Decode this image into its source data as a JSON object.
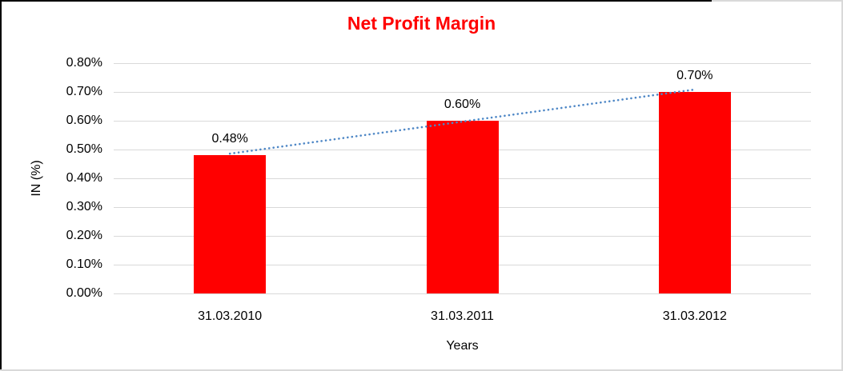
{
  "chart": {
    "title": "Net Profit Margin",
    "title_color": "#FF0000",
    "ylabel": "IN (%)",
    "xlabel": "Years"
  },
  "chart_data": {
    "type": "bar",
    "title": "Net Profit Margin",
    "xlabel": "Years",
    "ylabel": "IN (%)",
    "categories": [
      "31.03.2010",
      "31.03.2011",
      "31.03.2012"
    ],
    "series": [
      {
        "name": "Net Profit Margin",
        "values": [
          0.48,
          0.6,
          0.7
        ]
      }
    ],
    "data_labels": [
      "0.48%",
      "0.60%",
      "0.70%"
    ],
    "yticks": [
      "0.00%",
      "0.10%",
      "0.20%",
      "0.30%",
      "0.40%",
      "0.50%",
      "0.60%",
      "0.70%",
      "0.80%"
    ],
    "ylim": [
      0,
      0.8
    ],
    "grid": true,
    "legend": false,
    "bar_color": "#FF0000",
    "gridline_color": "#D9D9D9",
    "trendline": {
      "type": "linear",
      "style": "dotted",
      "color": "#4E87C6"
    }
  }
}
